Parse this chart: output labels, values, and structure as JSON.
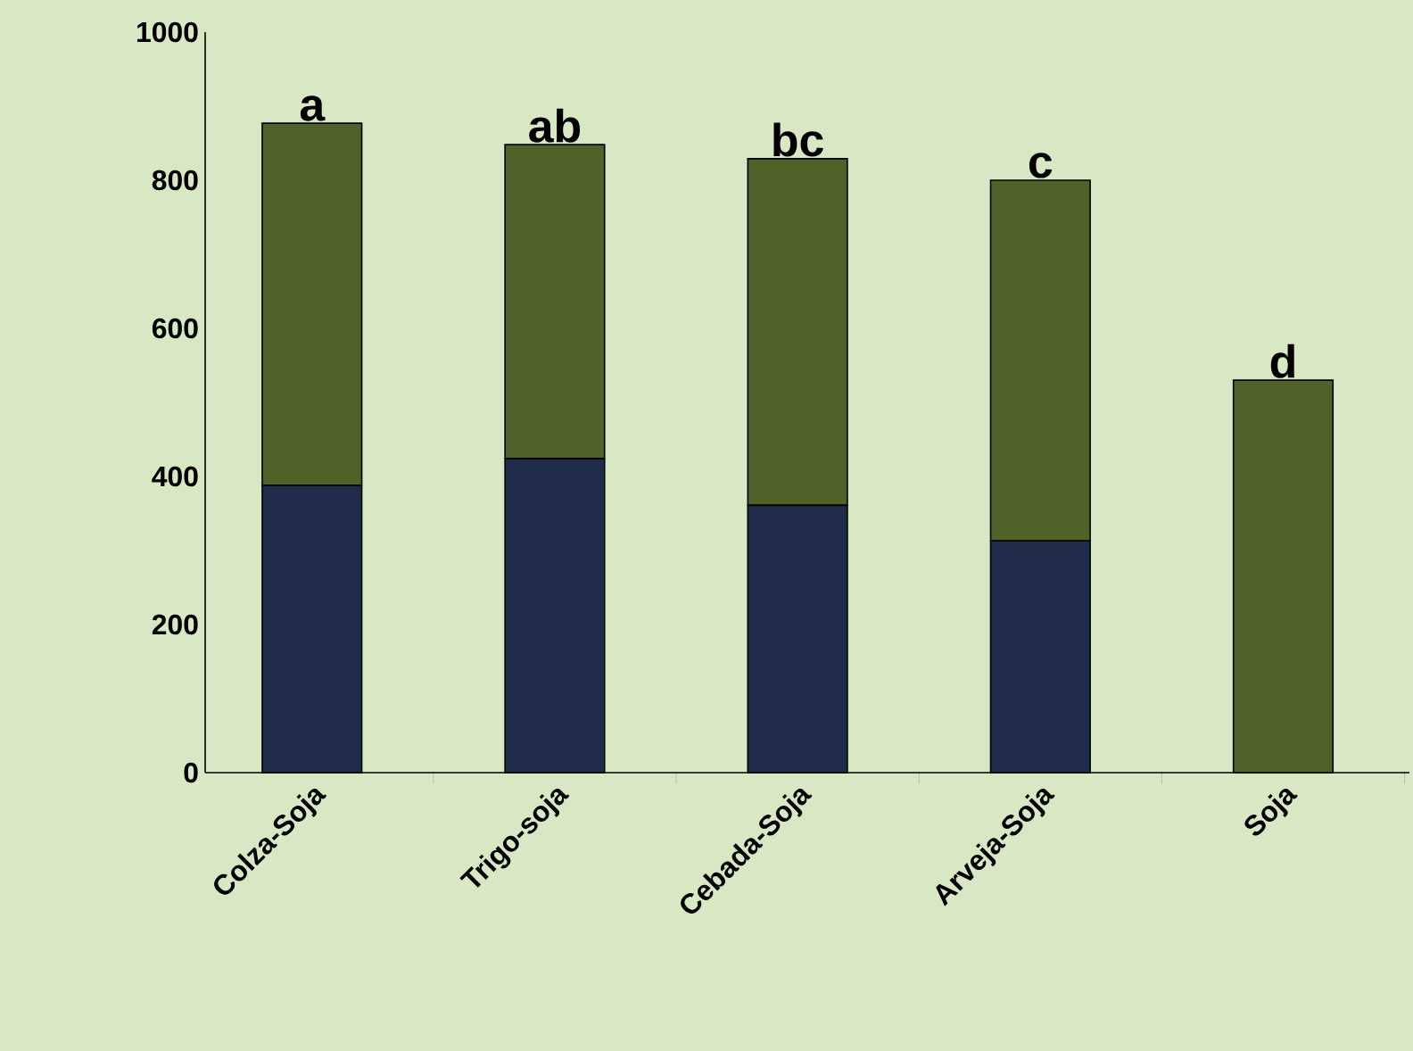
{
  "chart_data": {
    "type": "bar",
    "stacked": true,
    "categories": [
      "Colza-Soja",
      "Trigo-soja",
      "Cebada-Soja",
      "Arveja-Soja",
      "Soja"
    ],
    "series": [
      {
        "color": "#1f2d4a",
        "values": [
          388,
          424,
          361,
          313,
          0
        ]
      },
      {
        "color": "#4f6228",
        "values": [
          489,
          424,
          468,
          487,
          530
        ]
      }
    ],
    "ylim": [
      0,
      1000
    ],
    "yticks": [
      0,
      200,
      400,
      600,
      800,
      1000
    ],
    "grid": false,
    "annotations": [
      {
        "text": "a",
        "x": "Colza-Soja",
        "y": 877
      },
      {
        "text": "ab",
        "x": "Trigo-soja",
        "y": 848
      },
      {
        "text": "bc",
        "x": "Cebada-Soja",
        "y": 829
      },
      {
        "text": "c",
        "x": "Arveja-Soja",
        "y": 800
      },
      {
        "text": "d",
        "x": "Soja",
        "y": 530
      }
    ]
  }
}
